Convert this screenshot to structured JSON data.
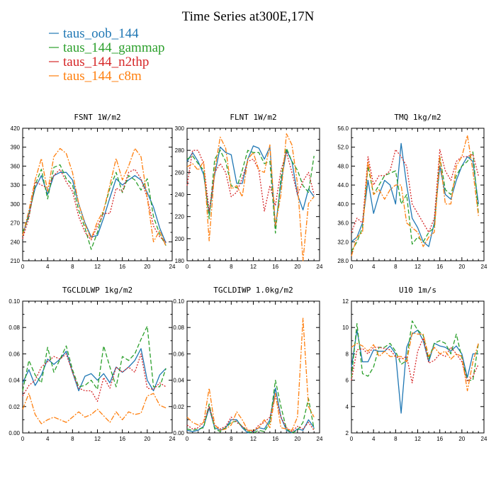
{
  "title": "Time Series at300E,17N",
  "legend": [
    {
      "name": "taus_oob_144",
      "color": "#1f77b4",
      "dash": "solid"
    },
    {
      "name": "taus_144_gammap",
      "color": "#2ca02c",
      "dash": "dashed"
    },
    {
      "name": "taus_144_n2thp",
      "color": "#d62728",
      "dash": "dotted"
    },
    {
      "name": "taus_144_c8m",
      "color": "#ff7f0e",
      "dash": "dashdot"
    }
  ],
  "chart_data": [
    {
      "type": "line",
      "title": "FSNT   1W/m2",
      "xlim": [
        0,
        24
      ],
      "ylim": [
        210,
        420
      ],
      "xticks": [
        0,
        4,
        8,
        12,
        16,
        20,
        24
      ],
      "yticks": [
        210,
        240,
        270,
        300,
        330,
        360,
        390,
        420
      ],
      "ytick_labels": [
        "210",
        "240",
        "270",
        "300",
        "330",
        "360",
        "390",
        "420"
      ],
      "x": [
        0,
        1,
        2,
        3,
        4,
        5,
        6,
        7,
        8,
        9,
        10,
        11,
        12,
        13,
        14,
        15,
        16,
        17,
        18,
        19,
        20,
        21,
        22,
        23
      ],
      "series": [
        {
          "name": "taus_oob_144",
          "values": [
            250,
            285,
            325,
            345,
            315,
            345,
            350,
            350,
            338,
            300,
            270,
            248,
            250,
            278,
            310,
            340,
            330,
            338,
            345,
            338,
            318,
            295,
            262,
            238
          ]
        },
        {
          "name": "taus_144_gammap",
          "values": [
            255,
            280,
            330,
            355,
            308,
            358,
            362,
            340,
            330,
            290,
            262,
            228,
            255,
            290,
            325,
            350,
            318,
            345,
            338,
            322,
            340,
            280,
            252,
            234
          ]
        },
        {
          "name": "taus_144_n2thp",
          "values": [
            245,
            278,
            335,
            330,
            325,
            345,
            355,
            335,
            320,
            280,
            255,
            243,
            265,
            285,
            285,
            325,
            320,
            350,
            355,
            340,
            310,
            265,
            248,
            240
          ]
        },
        {
          "name": "taus_144_c8m",
          "values": [
            250,
            290,
            338,
            372,
            320,
            375,
            388,
            380,
            350,
            300,
            268,
            245,
            272,
            290,
            330,
            372,
            338,
            360,
            388,
            375,
            310,
            240,
            258,
            233
          ]
        }
      ]
    },
    {
      "type": "line",
      "title": "FLNT   1W/m2",
      "xlim": [
        0,
        24
      ],
      "ylim": [
        180,
        300
      ],
      "xticks": [
        0,
        4,
        8,
        12,
        16,
        20,
        24
      ],
      "yticks": [
        180,
        200,
        220,
        240,
        260,
        280,
        300
      ],
      "ytick_labels": [
        "180",
        "200",
        "220",
        "240",
        "260",
        "280",
        "300"
      ],
      "x": [
        0,
        1,
        2,
        3,
        4,
        5,
        6,
        7,
        8,
        9,
        10,
        11,
        12,
        13,
        14,
        15,
        16,
        17,
        18,
        19,
        20,
        21,
        22,
        23
      ],
      "series": [
        {
          "name": "taus_oob_144",
          "values": [
            270,
            278,
            270,
            258,
            222,
            258,
            283,
            278,
            276,
            250,
            250,
            272,
            284,
            282,
            272,
            283,
            210,
            250,
            280,
            270,
            240,
            226,
            245,
            238
          ]
        },
        {
          "name": "taus_144_gammap",
          "values": [
            272,
            275,
            268,
            262,
            218,
            272,
            280,
            270,
            248,
            246,
            262,
            280,
            278,
            278,
            268,
            270,
            205,
            255,
            282,
            270,
            262,
            248,
            242,
            275
          ]
        },
        {
          "name": "taus_144_n2thp",
          "values": [
            248,
            280,
            280,
            268,
            225,
            260,
            268,
            260,
            238,
            242,
            255,
            270,
            272,
            262,
            225,
            248,
            230,
            262,
            278,
            260,
            240,
            252,
            260,
            240
          ]
        },
        {
          "name": "taus_144_c8m",
          "values": [
            265,
            268,
            262,
            270,
            198,
            262,
            292,
            282,
            245,
            248,
            238,
            272,
            278,
            262,
            260,
            285,
            212,
            240,
            295,
            285,
            250,
            180,
            232,
            238
          ]
        }
      ]
    },
    {
      "type": "line",
      "title": "TMQ   1kg/m2",
      "xlim": [
        0,
        24
      ],
      "ylim": [
        28,
        56
      ],
      "xticks": [
        0,
        4,
        8,
        12,
        16,
        20,
        24
      ],
      "yticks": [
        28,
        32,
        36,
        40,
        44,
        48,
        52,
        56
      ],
      "ytick_labels": [
        "28.0",
        "32.0",
        "36.0",
        "40.0",
        "44.0",
        "48.0",
        "52.0",
        "56.0"
      ],
      "x": [
        0,
        1,
        2,
        3,
        4,
        5,
        6,
        7,
        8,
        9,
        10,
        11,
        12,
        13,
        14,
        15,
        16,
        17,
        18,
        19,
        20,
        21,
        22,
        23
      ],
      "series": [
        {
          "name": "taus_oob_144",
          "values": [
            32,
            33,
            36,
            45,
            38,
            42,
            45,
            44,
            40,
            52.8,
            44,
            37,
            35,
            32,
            31,
            36,
            48,
            42,
            41,
            45,
            48,
            50,
            49,
            40
          ]
        },
        {
          "name": "taus_144_gammap",
          "values": [
            30,
            32,
            35,
            48,
            42,
            44,
            46,
            46.5,
            47,
            40,
            42,
            31.5,
            33,
            32,
            34,
            35,
            50,
            43,
            42,
            46,
            48,
            49,
            51,
            38
          ]
        },
        {
          "name": "taus_144_n2thp",
          "values": [
            34,
            37,
            36,
            50,
            44,
            46,
            46,
            47,
            51.5,
            50,
            48,
            40,
            38,
            36,
            34,
            37,
            51.5,
            47,
            45,
            49,
            50,
            50,
            50.5,
            46
          ]
        },
        {
          "name": "taus_144_c8m",
          "values": [
            29,
            33,
            34,
            49,
            42,
            43,
            41,
            43,
            44,
            44,
            36,
            35,
            34,
            31,
            33,
            34,
            50,
            40,
            40,
            48,
            50,
            54.5,
            47,
            37.5
          ]
        }
      ]
    },
    {
      "type": "line",
      "title": "TGCLDLWP   1kg/m2",
      "xlim": [
        0,
        24
      ],
      "ylim": [
        0,
        0.1
      ],
      "xticks": [
        0,
        4,
        8,
        12,
        16,
        20,
        24
      ],
      "yticks": [
        0,
        0.02,
        0.04,
        0.06,
        0.08,
        0.1
      ],
      "ytick_labels": [
        "0.00",
        "0.02",
        "0.04",
        "0.06",
        "0.08",
        "0.10"
      ],
      "x": [
        0,
        1,
        2,
        3,
        4,
        5,
        6,
        7,
        8,
        9,
        10,
        11,
        12,
        13,
        14,
        15,
        16,
        17,
        18,
        19,
        20,
        21,
        22,
        23
      ],
      "series": [
        {
          "name": "taus_oob_144",
          "values": [
            0.038,
            0.048,
            0.036,
            0.044,
            0.056,
            0.052,
            0.056,
            0.062,
            0.046,
            0.032,
            0.043,
            0.045,
            0.04,
            0.045,
            0.038,
            0.05,
            0.046,
            0.05,
            0.055,
            0.064,
            0.04,
            0.032,
            0.044,
            0.049
          ]
        },
        {
          "name": "taus_144_gammap",
          "values": [
            0.032,
            0.055,
            0.044,
            0.038,
            0.065,
            0.046,
            0.056,
            0.066,
            0.048,
            0.035,
            0.036,
            0.04,
            0.033,
            0.066,
            0.05,
            0.035,
            0.058,
            0.055,
            0.06,
            0.071,
            0.081,
            0.035,
            0.035,
            0.049
          ]
        },
        {
          "name": "taus_144_n2thp",
          "values": [
            0.028,
            0.036,
            0.04,
            0.05,
            0.054,
            0.058,
            0.056,
            0.06,
            0.046,
            0.034,
            0.032,
            0.032,
            0.024,
            0.042,
            0.034,
            0.05,
            0.046,
            0.05,
            0.046,
            0.06,
            0.034,
            0.033,
            0.038,
            0.035
          ]
        },
        {
          "name": "taus_144_c8m",
          "values": [
            0.018,
            0.03,
            0.014,
            0.007,
            0.01,
            0.012,
            0.01,
            0.008,
            0.012,
            0.016,
            0.012,
            0.014,
            0.018,
            0.013,
            0.008,
            0.016,
            0.01,
            0.016,
            0.014,
            0.015,
            0.028,
            0.03,
            0.021,
            0.019
          ]
        }
      ]
    },
    {
      "type": "line",
      "title": "TGCLDIWP   1.0kg/m2",
      "xlim": [
        0,
        24
      ],
      "ylim": [
        0,
        0.1
      ],
      "xticks": [
        0,
        4,
        8,
        12,
        16,
        20,
        24
      ],
      "yticks": [
        0,
        0.02,
        0.04,
        0.06,
        0.08,
        0.1
      ],
      "ytick_labels": [
        "0.00",
        "0.02",
        "0.04",
        "0.06",
        "0.08",
        "0.10"
      ],
      "x": [
        0,
        1,
        2,
        3,
        4,
        5,
        6,
        7,
        8,
        9,
        10,
        11,
        12,
        13,
        14,
        15,
        16,
        17,
        18,
        19,
        20,
        21,
        22,
        23
      ],
      "series": [
        {
          "name": "taus_oob_144",
          "values": [
            0.002,
            0.001,
            0.002,
            0.005,
            0.019,
            0.004,
            0.002,
            0.004,
            0.01,
            0.01,
            0.004,
            0,
            0.001,
            0.004,
            0.003,
            0.01,
            0.034,
            0.012,
            0.002,
            0,
            0.003,
            0.002,
            0.01,
            0.004
          ]
        },
        {
          "name": "taus_144_gammap",
          "values": [
            0.003,
            0.002,
            0.003,
            0.004,
            0.022,
            0.003,
            0.001,
            0.004,
            0.008,
            0.009,
            0.005,
            0.001,
            0,
            0.002,
            0.001,
            0.008,
            0.04,
            0.02,
            0.003,
            0,
            0.002,
            0.008,
            0.026,
            0.003
          ]
        },
        {
          "name": "taus_144_n2thp",
          "values": [
            0.006,
            0.003,
            0.004,
            0.008,
            0.02,
            0.006,
            0.003,
            0.005,
            0.012,
            0.008,
            0.005,
            0.002,
            0.001,
            0.006,
            0.008,
            0.012,
            0.028,
            0.012,
            0.004,
            0.001,
            0.005,
            0.003,
            0.008,
            0.002
          ]
        },
        {
          "name": "taus_144_c8m",
          "values": [
            0.012,
            0.008,
            0.006,
            0.008,
            0.034,
            0.006,
            0.002,
            0.003,
            0.006,
            0.016,
            0.01,
            0.002,
            0.002,
            0.004,
            0.01,
            0.004,
            0.03,
            0.004,
            0.003,
            0.002,
            0.012,
            0.087,
            0.02,
            0.012
          ]
        }
      ]
    },
    {
      "type": "line",
      "title": "U10   1m/s",
      "xlim": [
        0,
        24
      ],
      "ylim": [
        2,
        12
      ],
      "xticks": [
        0,
        4,
        8,
        12,
        16,
        20,
        24
      ],
      "yticks": [
        2,
        4,
        6,
        8,
        10,
        12
      ],
      "ytick_labels": [
        "2",
        "4",
        "6",
        "8",
        "10",
        "12"
      ],
      "x": [
        0,
        1,
        2,
        3,
        4,
        5,
        6,
        7,
        8,
        9,
        10,
        11,
        12,
        13,
        14,
        15,
        16,
        17,
        18,
        19,
        20,
        21,
        22,
        23
      ],
      "series": [
        {
          "name": "taus_oob_144",
          "values": [
            7.0,
            9.8,
            7.4,
            7.4,
            8.3,
            8.2,
            8.2,
            8.6,
            8.0,
            3.5,
            8.5,
            9.5,
            9.8,
            9.0,
            7.4,
            8.8,
            8.6,
            8.5,
            8.2,
            8.6,
            8.0,
            6.2,
            8.0,
            8.0
          ]
        },
        {
          "name": "taus_144_gammap",
          "values": [
            6.2,
            10.3,
            6.5,
            6.3,
            7.0,
            8.5,
            8.5,
            8.8,
            8.2,
            7.2,
            7.5,
            10.5,
            9.8,
            9.4,
            7.6,
            8.8,
            9.0,
            8.8,
            8.0,
            9.5,
            7.7,
            6.0,
            6.0,
            8.8
          ]
        },
        {
          "name": "taus_144_n2thp",
          "values": [
            6.0,
            8.3,
            8.4,
            8.0,
            8.5,
            8.5,
            8.4,
            8.3,
            7.8,
            7.6,
            7.8,
            5.8,
            8.2,
            9.2,
            7.3,
            7.5,
            8.0,
            7.8,
            8.5,
            8.0,
            7.4,
            5.9,
            6.3,
            7.2
          ]
        },
        {
          "name": "taus_144_c8m",
          "values": [
            8.5,
            8.8,
            8.6,
            8.2,
            8.7,
            7.8,
            8.2,
            7.8,
            7.8,
            7.8,
            7.4,
            9.6,
            9.5,
            9.5,
            7.8,
            8.5,
            8.0,
            8.2,
            7.6,
            8.0,
            7.8,
            5.2,
            7.4,
            8.8
          ]
        }
      ]
    }
  ]
}
